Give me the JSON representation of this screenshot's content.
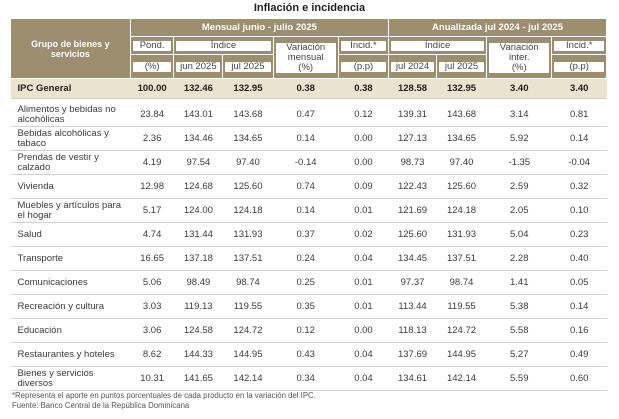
{
  "title": "Inflación e incidencia",
  "header": {
    "group_label": "Grupo de bienes y servicios",
    "monthly_title": "Mensual junio - julio 2025",
    "annual_title": "Anualizada jul 2024 - jul 2025",
    "pond": "Pond.",
    "indice": "Índice",
    "var_mensual": "Variación mensual",
    "incid": "Incid.*",
    "var_inter": "Variación inter.",
    "pct": "(%)",
    "pp": "(p.p)",
    "jun2025": "jun 2025",
    "jul2025": "jul 2025",
    "jul2024": "jul 2024"
  },
  "rows": [
    {
      "label": "IPC General",
      "pond": "100.00",
      "jun": "132.46",
      "jul": "132.95",
      "var_m": "0.38",
      "inc_m": "0.38",
      "jul24": "128.58",
      "jul25": "132.95",
      "var_a": "3.40",
      "inc_a": "3.40"
    },
    {
      "label": "Alimentos y bebidas no alcohólicas",
      "pond": "23.84",
      "jun": "143.01",
      "jul": "143.68",
      "var_m": "0.47",
      "inc_m": "0.12",
      "jul24": "139.31",
      "jul25": "143.68",
      "var_a": "3.14",
      "inc_a": "0.81"
    },
    {
      "label": "Bebidas alcohólicas y tabaco",
      "pond": "2.36",
      "jun": "134.46",
      "jul": "134.65",
      "var_m": "0.14",
      "inc_m": "0.00",
      "jul24": "127.13",
      "jul25": "134.65",
      "var_a": "5.92",
      "inc_a": "0.14"
    },
    {
      "label": "Prendas de vestir y calzado",
      "pond": "4.19",
      "jun": "97.54",
      "jul": "97.40",
      "var_m": "-0.14",
      "inc_m": "0.00",
      "jul24": "98.73",
      "jul25": "97.40",
      "var_a": "-1.35",
      "inc_a": "-0.04"
    },
    {
      "label": "Vivienda",
      "pond": "12.98",
      "jun": "124.68",
      "jul": "125.60",
      "var_m": "0.74",
      "inc_m": "0.09",
      "jul24": "122.43",
      "jul25": "125.60",
      "var_a": "2.59",
      "inc_a": "0.32"
    },
    {
      "label": "Muebles y artículos para el hogar",
      "pond": "5.17",
      "jun": "124.00",
      "jul": "124.18",
      "var_m": "0.14",
      "inc_m": "0.01",
      "jul24": "121.69",
      "jul25": "124.18",
      "var_a": "2.05",
      "inc_a": "0.10"
    },
    {
      "label": "Salud",
      "pond": "4.74",
      "jun": "131.44",
      "jul": "131.93",
      "var_m": "0.37",
      "inc_m": "0.02",
      "jul24": "125.60",
      "jul25": "131.93",
      "var_a": "5.04",
      "inc_a": "0.23"
    },
    {
      "label": "Transporte",
      "pond": "16.65",
      "jun": "137.18",
      "jul": "137.51",
      "var_m": "0.24",
      "inc_m": "0.04",
      "jul24": "134.45",
      "jul25": "137.51",
      "var_a": "2.28",
      "inc_a": "0.40"
    },
    {
      "label": "Comunicaciones",
      "pond": "5.06",
      "jun": "98.49",
      "jul": "98.74",
      "var_m": "0.25",
      "inc_m": "0.01",
      "jul24": "97.37",
      "jul25": "98.74",
      "var_a": "1.41",
      "inc_a": "0.05"
    },
    {
      "label": "Recreación y cultura",
      "pond": "3.03",
      "jun": "119.13",
      "jul": "119.55",
      "var_m": "0.35",
      "inc_m": "0.01",
      "jul24": "113.44",
      "jul25": "119.55",
      "var_a": "5.38",
      "inc_a": "0.14"
    },
    {
      "label": "Educación",
      "pond": "3.06",
      "jun": "124.58",
      "jul": "124.72",
      "var_m": "0.12",
      "inc_m": "0.00",
      "jul24": "118.13",
      "jul25": "124.72",
      "var_a": "5.58",
      "inc_a": "0.16"
    },
    {
      "label": "Restaurantes y hoteles",
      "pond": "8.62",
      "jun": "144.33",
      "jul": "144.95",
      "var_m": "0.43",
      "inc_m": "0.04",
      "jul24": "137.69",
      "jul25": "144.95",
      "var_a": "5.27",
      "inc_a": "0.49"
    },
    {
      "label": "Bienes y servicios diversos",
      "pond": "10.31",
      "jun": "141.65",
      "jul": "142.14",
      "var_m": "0.34",
      "inc_m": "0.04",
      "jul24": "134.61",
      "jul25": "142.14",
      "var_a": "5.59",
      "inc_a": "0.60"
    }
  ],
  "notes": {
    "footnote": "*Representa el aporte en puntos porcentuales de cada producto en la variación del IPC.",
    "source": "Fuente: Banco Central de la República Dominicana"
  },
  "colors": {
    "header": "#9c8e6e",
    "highlight_row": "#eae3cf",
    "row_border": "#d7d2c6"
  }
}
